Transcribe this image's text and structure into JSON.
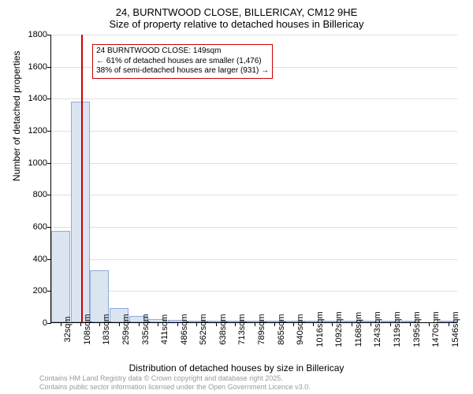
{
  "title_main": "24, BURNTWOOD CLOSE, BILLERICAY, CM12 9HE",
  "title_sub": "Size of property relative to detached houses in Billericay",
  "y_axis_label": "Number of detached properties",
  "x_axis_label": "Distribution of detached houses by size in Billericay",
  "chart": {
    "type": "histogram",
    "ylim": [
      0,
      1800
    ],
    "ytick_step": 200,
    "x_ticks": [
      "32sqm",
      "108sqm",
      "183sqm",
      "259sqm",
      "335sqm",
      "411sqm",
      "486sqm",
      "562sqm",
      "638sqm",
      "713sqm",
      "789sqm",
      "865sqm",
      "940sqm",
      "1016sqm",
      "1092sqm",
      "1168sqm",
      "1243sqm",
      "1319sqm",
      "1395sqm",
      "1470sqm",
      "1546sqm"
    ],
    "bars": [
      570,
      1375,
      325,
      90,
      40,
      20,
      15,
      10,
      5,
      5,
      5,
      5,
      5,
      5,
      5,
      5,
      5,
      5,
      5,
      0,
      5
    ],
    "bar_color": "#dbe5f1",
    "bar_border": "#8faadc",
    "grid_color": "#e0e0e0",
    "marker_color": "#cc0000",
    "marker_bin_index": 1,
    "marker_position_in_bin": 0.55
  },
  "annotation": {
    "line1": "24 BURNTWOOD CLOSE: 149sqm",
    "line2": "← 61% of detached houses are smaller (1,476)",
    "line3": "38% of semi-detached houses are larger (931) →"
  },
  "footer_line1": "Contains HM Land Registry data © Crown copyright and database right 2025.",
  "footer_line2": "Contains public sector information licensed under the Open Government Licence v3.0."
}
